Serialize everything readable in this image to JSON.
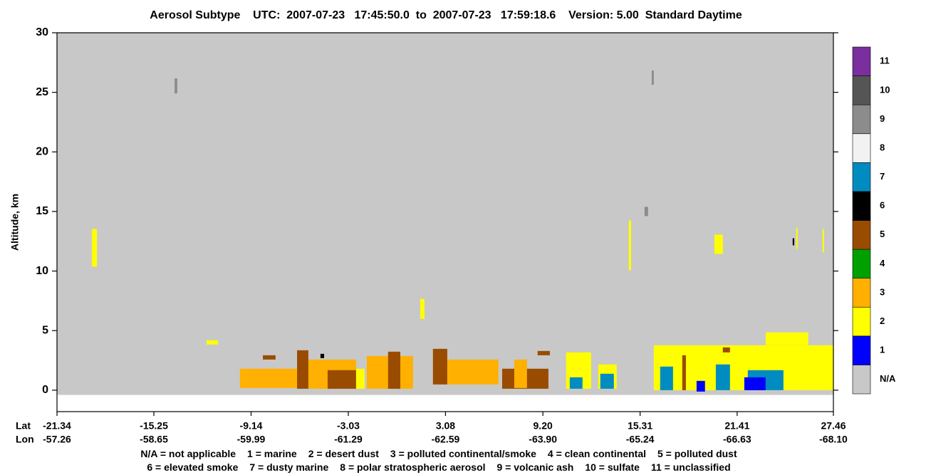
{
  "chart_data": {
    "type": "curtain",
    "title": "Aerosol Subtype    UTC:  2007-07-23   17:45:50.0  to  2007-07-23   17:59:18.6    Version: 5.00  Standard Daytime",
    "y_label": "Altitude, km",
    "ylim": [
      -1.8,
      30
    ],
    "yticks": [
      0,
      5,
      10,
      15,
      20,
      25,
      30
    ],
    "xlim": [
      -21.34,
      27.46
    ],
    "x_row_label": "Lat",
    "x2_row_label": "Lon",
    "xticks": [
      -21.34,
      -15.25,
      -9.14,
      -3.03,
      3.08,
      {
        "value": 9.2,
        "label": "9.20"
      },
      15.31,
      21.41,
      27.46
    ],
    "x2ticks": [
      -57.26,
      -58.65,
      -59.99,
      -61.29,
      -62.59,
      {
        "value": -63.9,
        "label": "-63.90"
      },
      -65.24,
      -66.63,
      {
        "value": -68.1,
        "label": "-68.10"
      }
    ],
    "colorbar": {
      "categories": [
        "N/A",
        "1",
        "2",
        "3",
        "4",
        "5",
        "6",
        "7",
        "8",
        "9",
        "10",
        "11"
      ],
      "colors": [
        "#c8c8c8",
        "#0000ff",
        "#ffff00",
        "#ffb000",
        "#00a000",
        "#994c00",
        "#000000",
        "#008cc0",
        "#f2f2f2",
        "#8c8c8c",
        "#555555",
        "#7b2e9e"
      ]
    },
    "legend_rows": [
      [
        "N/A = not applicable",
        "1 = marine",
        "2 = desert dust",
        "3 = polluted continental/smoke",
        "4 = clean continental",
        "5 = polluted dust"
      ],
      [
        "6 = elevated smoke",
        "7 = dusty marine",
        "8 = polar stratospheric aerosol",
        "9 = volcanic ash",
        "10 = sulfate",
        "11 = unclassified"
      ]
    ],
    "features": [
      {
        "subtype": "N/A",
        "lat": [
          -21.34,
          27.46
        ],
        "alt": [
          -0.4,
          30
        ]
      },
      {
        "subtype": "2",
        "lat": [
          -19.15,
          -18.83
        ],
        "alt": [
          10.36,
          13.53
        ]
      },
      {
        "subtype": "9",
        "lat": [
          -13.95,
          -13.78
        ],
        "alt": [
          24.91,
          26.17
        ]
      },
      {
        "subtype": "2",
        "lat": [
          -11.94,
          -11.22
        ],
        "alt": [
          3.83,
          4.19
        ]
      },
      {
        "subtype": "3",
        "lat": [
          -9.84,
          -6.21
        ],
        "alt": [
          0.18,
          1.8
        ]
      },
      {
        "subtype": "5",
        "lat": [
          -8.4,
          -7.6
        ],
        "alt": [
          2.57,
          2.93
        ]
      },
      {
        "subtype": "3",
        "lat": [
          -5.54,
          -2.54
        ],
        "alt": [
          0.12,
          2.57
        ]
      },
      {
        "subtype": "5",
        "lat": [
          -6.25,
          -5.54
        ],
        "alt": [
          0.12,
          3.35
        ]
      },
      {
        "subtype": "5",
        "lat": [
          -4.33,
          -2.54
        ],
        "alt": [
          0.12,
          1.68
        ]
      },
      {
        "subtype": "6",
        "lat": [
          -4.78,
          -4.55
        ],
        "alt": [
          2.69,
          3.05
        ]
      },
      {
        "subtype": "2",
        "lat": [
          -2.54,
          -2.0
        ],
        "alt": [
          0.12,
          1.8
        ]
      },
      {
        "subtype": "3",
        "lat": [
          -1.87,
          1.04
        ],
        "alt": [
          0.12,
          2.87
        ]
      },
      {
        "subtype": "5",
        "lat": [
          -0.53,
          0.24
        ],
        "alt": [
          0.12,
          3.23
        ]
      },
      {
        "subtype": "2",
        "lat": [
          1.49,
          1.76
        ],
        "alt": [
          5.99,
          7.66
        ]
      },
      {
        "subtype": "3",
        "lat": [
          3.06,
          6.41
        ],
        "alt": [
          0.48,
          2.57
        ]
      },
      {
        "subtype": "5",
        "lat": [
          2.29,
          3.19
        ],
        "alt": [
          0.48,
          3.47
        ]
      },
      {
        "subtype": "5",
        "lat": [
          6.64,
          9.55
        ],
        "alt": [
          0.12,
          1.8
        ]
      },
      {
        "subtype": "3",
        "lat": [
          7.4,
          8.2
        ],
        "alt": [
          0.18,
          2.57
        ]
      },
      {
        "subtype": "5",
        "lat": [
          8.87,
          9.64
        ],
        "alt": [
          2.93,
          3.29
        ]
      },
      {
        "subtype": "2",
        "lat": [
          10.66,
          12.23
        ],
        "alt": [
          0.12,
          3.17
        ]
      },
      {
        "subtype": "7",
        "lat": [
          10.89,
          11.69
        ],
        "alt": [
          0.12,
          1.08
        ]
      },
      {
        "subtype": "2",
        "lat": [
          12.68,
          13.84
        ],
        "alt": [
          0.12,
          2.16
        ]
      },
      {
        "subtype": "7",
        "lat": [
          12.81,
          13.66
        ],
        "alt": [
          0.12,
          1.38
        ]
      },
      {
        "subtype": "2",
        "lat": [
          14.6,
          14.74
        ],
        "alt": [
          10.06,
          14.25
        ]
      },
      {
        "subtype": "9",
        "lat": [
          15.59,
          15.81
        ],
        "alt": [
          14.61,
          15.39
        ]
      },
      {
        "subtype": "9",
        "lat": [
          16.04,
          16.17
        ],
        "alt": [
          25.63,
          26.83
        ]
      },
      {
        "subtype": "2",
        "lat": [
          16.17,
          27.46
        ],
        "alt": [
          0,
          3.77
        ]
      },
      {
        "subtype": "2",
        "lat": [
          23.2,
          25.88
        ],
        "alt": [
          3.77,
          4.85
        ]
      },
      {
        "subtype": "7",
        "lat": [
          16.57,
          17.38
        ],
        "alt": [
          0,
          1.98
        ]
      },
      {
        "subtype": "5",
        "lat": [
          17.96,
          18.19
        ],
        "alt": [
          0,
          2.93
        ]
      },
      {
        "subtype": "1",
        "lat": [
          18.86,
          19.39
        ],
        "alt": [
          -0.12,
          0.78
        ]
      },
      {
        "subtype": "2",
        "lat": [
          19.98,
          20.51
        ],
        "alt": [
          11.44,
          13.05
        ]
      },
      {
        "subtype": "7",
        "lat": [
          20.07,
          20.96
        ],
        "alt": [
          0,
          2.16
        ]
      },
      {
        "subtype": "5",
        "lat": [
          20.51,
          20.96
        ],
        "alt": [
          3.17,
          3.59
        ]
      },
      {
        "subtype": "7",
        "lat": [
          22.08,
          24.32
        ],
        "alt": [
          0,
          1.68
        ]
      },
      {
        "subtype": "1",
        "lat": [
          21.86,
          23.2
        ],
        "alt": [
          0,
          1.08
        ]
      },
      {
        "subtype": "6",
        "lat": [
          24.9,
          25.0
        ],
        "alt": [
          12.16,
          12.75
        ]
      },
      {
        "subtype": "2",
        "lat": [
          25.12,
          25.2
        ],
        "alt": [
          11.86,
          13.65
        ]
      },
      {
        "subtype": "2",
        "lat": [
          26.78,
          26.86
        ],
        "alt": [
          11.56,
          13.53
        ]
      }
    ]
  }
}
